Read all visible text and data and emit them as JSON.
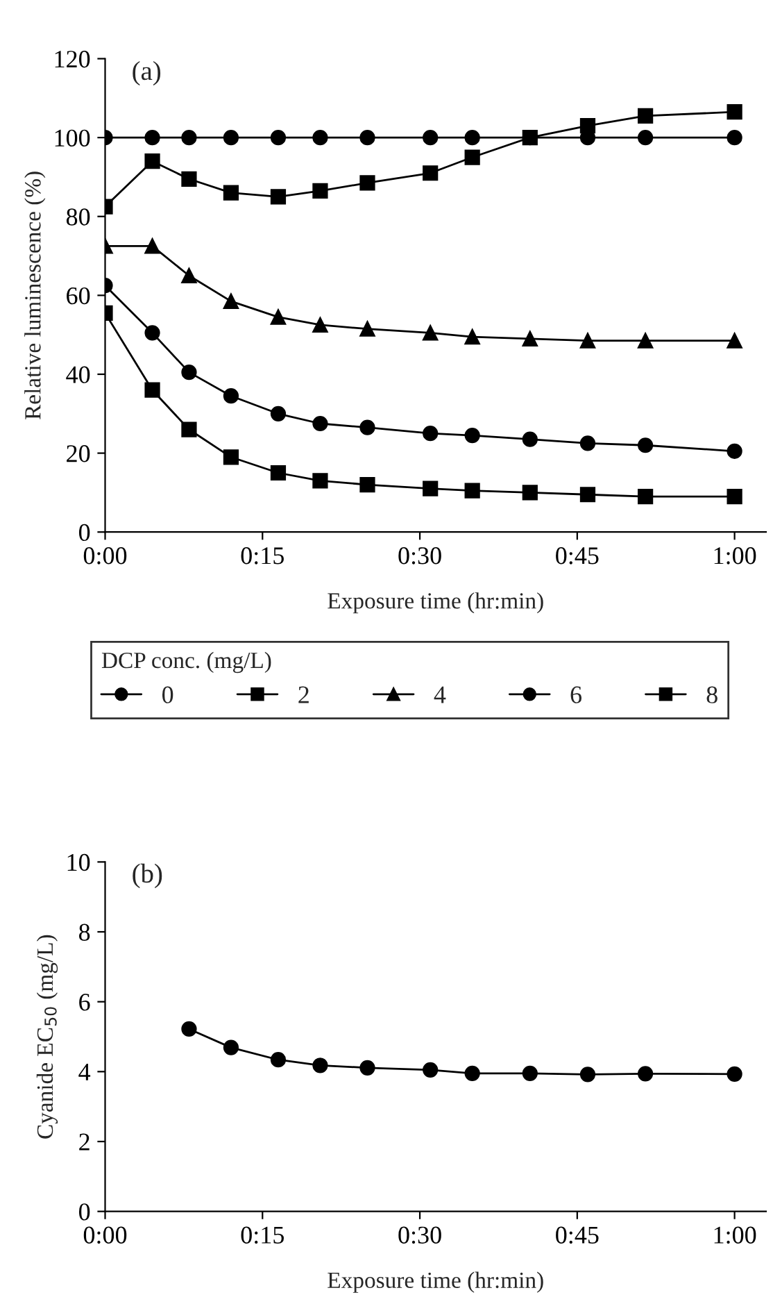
{
  "chart_data": [
    {
      "type": "line",
      "title": "(a)",
      "xlabel": "Exposure time (hr:min)",
      "ylabel": "Relative luminescence (%)",
      "legend_title": "DCP conc. (mg/L)",
      "legend": "bottom",
      "x": [
        0,
        4.5,
        8,
        12,
        16.5,
        20.5,
        25,
        31,
        35,
        40.5,
        46,
        51.5,
        60
      ],
      "xlim": [
        0,
        63
      ],
      "xticks": [
        {
          "value": 0,
          "label": "0:00"
        },
        {
          "value": 15,
          "label": "0:15"
        },
        {
          "value": 30,
          "label": "0:30"
        },
        {
          "value": 45,
          "label": "0:45"
        },
        {
          "value": 60,
          "label": "1:00"
        }
      ],
      "ylim": [
        0,
        120
      ],
      "yticks": [
        0,
        20,
        40,
        60,
        80,
        100,
        120
      ],
      "grid": false,
      "series": [
        {
          "name": "0",
          "color": "#000000",
          "marker": "circle",
          "values": [
            100,
            100,
            100,
            100,
            100,
            100,
            100,
            100,
            100,
            100,
            100,
            100,
            100
          ]
        },
        {
          "name": "2",
          "color": "#000000",
          "marker": "square",
          "values": [
            82.5,
            94,
            89.5,
            86,
            85,
            86.5,
            88.5,
            91,
            95,
            100,
            103,
            105.5,
            106.5
          ]
        },
        {
          "name": "4",
          "color": "#000000",
          "marker": "triangle",
          "values": [
            72.5,
            72.5,
            65,
            58.5,
            54.5,
            52.5,
            51.5,
            50.5,
            49.5,
            49,
            48.5,
            48.5,
            48.5
          ]
        },
        {
          "name": "6",
          "color": "#000000",
          "marker": "circle",
          "values": [
            62.5,
            50.5,
            40.5,
            34.5,
            30,
            27.5,
            26.5,
            25,
            24.5,
            23.5,
            22.5,
            22,
            20.5
          ]
        },
        {
          "name": "8",
          "color": "#000000",
          "marker": "square",
          "values": [
            55.5,
            36,
            26,
            19,
            15,
            13,
            12,
            11,
            10.5,
            10,
            9.5,
            9,
            9
          ]
        }
      ]
    },
    {
      "type": "line",
      "title": "(b)",
      "xlabel": "Exposure time (hr:min)",
      "ylabel": "Cyanide EC$_{50}$ (mg/L)",
      "x": [
        8,
        12,
        16.5,
        20.5,
        25,
        31,
        35,
        40.5,
        46,
        51.5,
        60
      ],
      "xlim": [
        0,
        63
      ],
      "xticks": [
        {
          "value": 0,
          "label": "0:00"
        },
        {
          "value": 15,
          "label": "0:15"
        },
        {
          "value": 30,
          "label": "0:30"
        },
        {
          "value": 45,
          "label": "0:45"
        },
        {
          "value": 60,
          "label": "1:00"
        }
      ],
      "ylim": [
        0,
        10
      ],
      "yticks": [
        0,
        2,
        4,
        6,
        8,
        10
      ],
      "grid": false,
      "series": [
        {
          "color": "#000000",
          "marker": "circle",
          "values": [
            5.22,
            4.69,
            4.34,
            4.18,
            4.11,
            4.05,
            3.95,
            3.95,
            3.92,
            3.94,
            3.93
          ]
        }
      ]
    }
  ]
}
